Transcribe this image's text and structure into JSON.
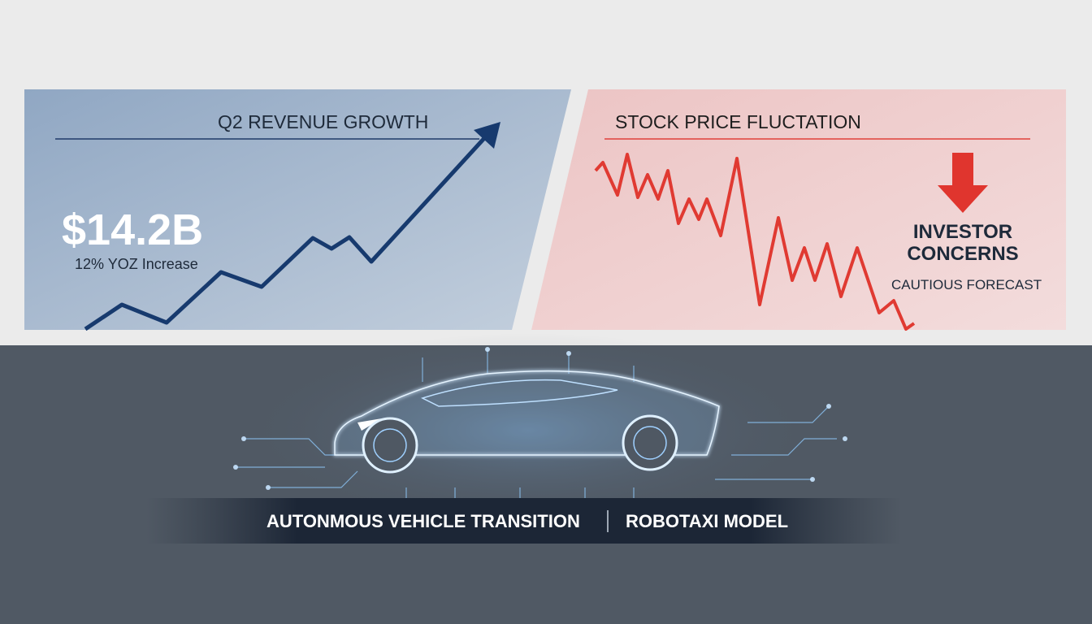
{
  "left_panel": {
    "title": "Q2 REVENUE GROWTH",
    "amount": "$14.2B",
    "note": "12% YOZ Increase"
  },
  "right_panel": {
    "title": "STOCK PRICE FLUCTATION",
    "headline": "INVESTOR CONCERNS",
    "note": "CAUTIOUS FORECAST"
  },
  "banner": {
    "left": "AUTONMOUS VEHICLE TRANSITION",
    "right": "ROBOTAXI MODEL"
  }
}
